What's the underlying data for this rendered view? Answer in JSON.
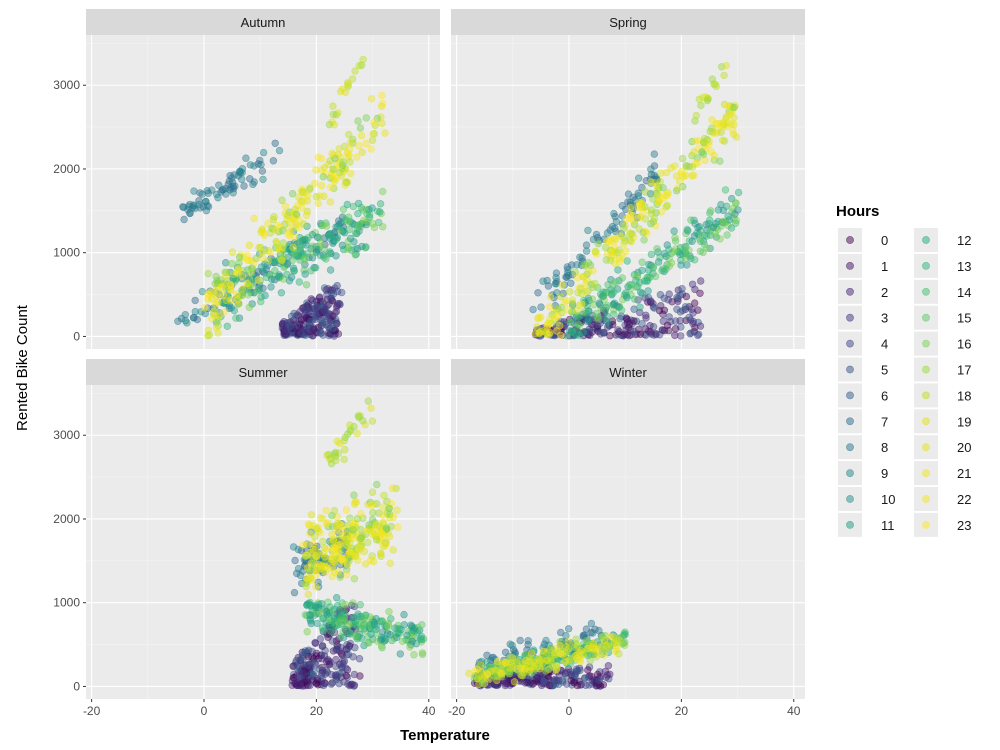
{
  "chart_data": {
    "type": "scatter",
    "xlabel": "Temperature",
    "ylabel": "Rented Bike Count",
    "xlim": [
      -21,
      42
    ],
    "ylim": [
      -150,
      3600
    ],
    "x_ticks": [
      -20,
      0,
      20,
      40
    ],
    "y_ticks": [
      0,
      1000,
      2000,
      3000
    ],
    "grid": true,
    "legend": {
      "title": "Hours",
      "placement": "right",
      "entries": [
        "0",
        "1",
        "2",
        "3",
        "4",
        "5",
        "6",
        "7",
        "8",
        "9",
        "10",
        "11",
        "12",
        "13",
        "14",
        "15",
        "16",
        "17",
        "18",
        "19",
        "20",
        "21",
        "22",
        "23"
      ]
    },
    "colors": [
      "#440154",
      "#471365",
      "#482475",
      "#463480",
      "#414487",
      "#3b528b",
      "#355f8d",
      "#2f6c8e",
      "#2a788e",
      "#25848e",
      "#21918c",
      "#1e9c89",
      "#22a884",
      "#2fb47c",
      "#44bf70",
      "#5ec962",
      "#7ad151",
      "#9bd93c",
      "#bddf26",
      "#dfe318",
      "#e8e419",
      "#f0e51c",
      "#f6e620",
      "#fde725"
    ],
    "panels": [
      {
        "name": "Autumn",
        "clusters": [
          {
            "hours": [
              0,
              1,
              2,
              3,
              4,
              5,
              6
            ],
            "x": [
              14,
              24
            ],
            "ymax": [
              150,
              700
            ],
            "ymin": 0,
            "n": 220
          },
          {
            "hours": [
              7,
              8,
              9
            ],
            "x": [
              -4,
              14
            ],
            "yfit": [
              1450,
              2200
            ],
            "spread": 260,
            "n": 70
          },
          {
            "hours": [
              7,
              8,
              9,
              10
            ],
            "x": [
              -4,
              26
            ],
            "yfit": [
              150,
              1300
            ],
            "spread": 350,
            "n": 80
          },
          {
            "hours": [
              10,
              11,
              12,
              13,
              14,
              15,
              16
            ],
            "x": [
              2,
              32
            ],
            "yfit": [
              400,
              1500
            ],
            "spread": 450,
            "n": 220
          },
          {
            "hours": [
              16,
              17,
              18,
              19,
              20,
              21,
              22,
              23
            ],
            "x": [
              0,
              32
            ],
            "yfit": [
              300,
              2600
            ],
            "spread": 550,
            "n": 230
          },
          {
            "hours": [
              17,
              18,
              19
            ],
            "x": [
              22,
              28
            ],
            "yfit": [
              2500,
              3300
            ],
            "spread": 150,
            "n": 18
          }
        ]
      },
      {
        "name": "Spring",
        "clusters": [
          {
            "hours": [
              0,
              1,
              2,
              3,
              4,
              5,
              6
            ],
            "x": [
              -6,
              24
            ],
            "ymax": [
              80,
              700
            ],
            "ymin": 0,
            "n": 220
          },
          {
            "hours": [
              7,
              8,
              9
            ],
            "x": [
              -6,
              16
            ],
            "yfit": [
              350,
              1950
            ],
            "spread": 320,
            "n": 80
          },
          {
            "hours": [
              10,
              11,
              12,
              13,
              14,
              15,
              16
            ],
            "x": [
              0,
              30
            ],
            "yfit": [
              100,
              1500
            ],
            "spread": 380,
            "n": 220
          },
          {
            "hours": [
              16,
              17,
              18,
              19,
              20,
              21,
              22,
              23
            ],
            "x": [
              -6,
              30
            ],
            "yfit": [
              0,
              2700
            ],
            "spread": 380,
            "n": 240
          },
          {
            "hours": [
              17,
              18,
              19
            ],
            "x": [
              22,
              28
            ],
            "yfit": [
              2600,
              3250
            ],
            "spread": 150,
            "n": 16
          }
        ]
      },
      {
        "name": "Summer",
        "clusters": [
          {
            "hours": [
              0,
              1,
              2,
              3,
              4,
              5,
              6
            ],
            "x": [
              16,
              27
            ],
            "ymax": [
              300,
              1100
            ],
            "ymin": 0,
            "n": 220
          },
          {
            "hours": [
              7,
              8,
              9
            ],
            "x": [
              16,
              26
            ],
            "yfit": [
              1300,
              1700
            ],
            "spread": 500,
            "n": 70
          },
          {
            "hours": [
              10,
              11,
              12,
              13,
              14,
              15,
              16
            ],
            "x": [
              18,
              39
            ],
            "yfit": [
              900,
              600
            ],
            "spread": 350,
            "n": 200
          },
          {
            "hours": [
              16,
              17,
              18,
              19,
              20,
              21,
              22,
              23
            ],
            "x": [
              18,
              34
            ],
            "yfit": [
              1500,
              2000
            ],
            "spread": 650,
            "n": 250
          },
          {
            "hours": [
              17,
              18,
              19
            ],
            "x": [
              22,
              30
            ],
            "yfit": [
              2700,
              3300
            ],
            "spread": 250,
            "n": 30
          }
        ]
      },
      {
        "name": "Winter",
        "clusters": [
          {
            "hours": [
              0,
              1,
              2,
              3,
              4,
              5,
              6
            ],
            "x": [
              -17,
              7
            ],
            "ymax": [
              150,
              250
            ],
            "ymin": 0,
            "n": 200
          },
          {
            "hours": [
              7,
              8,
              9
            ],
            "x": [
              -16,
              6
            ],
            "yfit": [
              250,
              700
            ],
            "spread": 200,
            "n": 60
          },
          {
            "hours": [
              10,
              11,
              12,
              13,
              14,
              15,
              16
            ],
            "x": [
              -17,
              10
            ],
            "yfit": [
              120,
              550
            ],
            "spread": 180,
            "n": 150
          },
          {
            "hours": [
              16,
              17,
              18,
              19,
              20,
              21,
              22,
              23
            ],
            "x": [
              -17,
              10
            ],
            "yfit": [
              100,
              550
            ],
            "spread": 200,
            "n": 180
          }
        ]
      }
    ]
  }
}
